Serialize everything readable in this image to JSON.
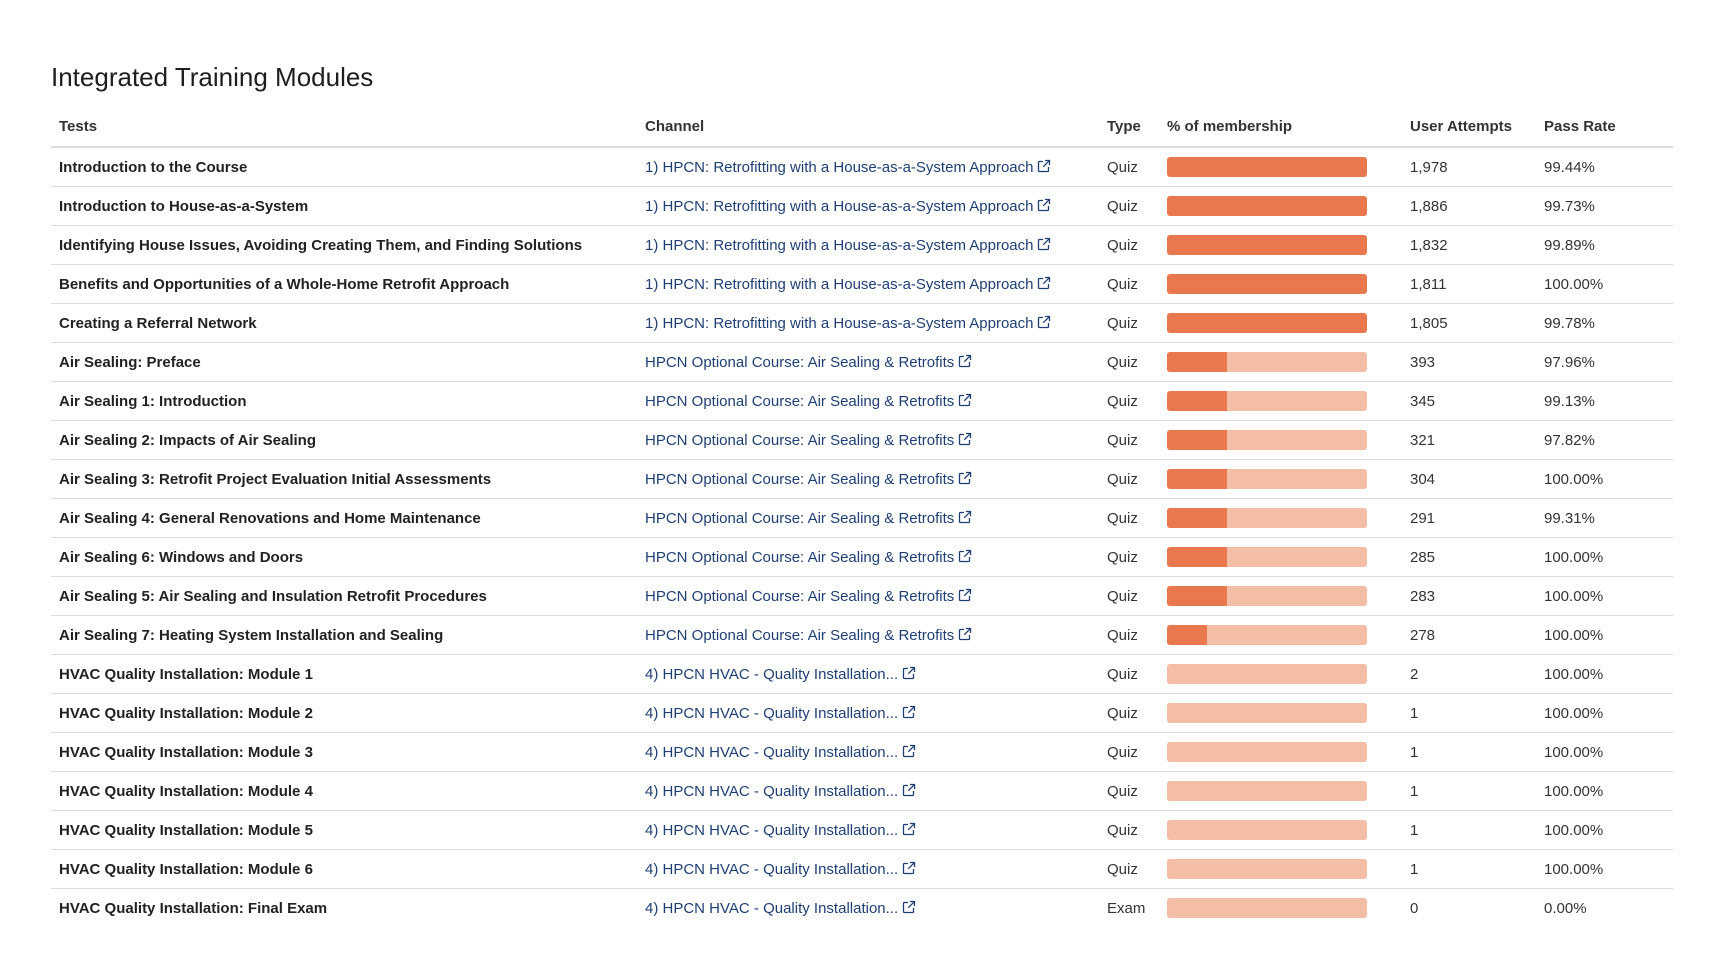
{
  "title": "Integrated Training Modules",
  "colors": {
    "accent": "#e9784f",
    "track": "#f4bda5",
    "link": "#1f3f73"
  },
  "columns": {
    "tests": "Tests",
    "channel": "Channel",
    "type": "Type",
    "membership": "% of membership",
    "attempts": "User Attempts",
    "pass_rate": "Pass Rate"
  },
  "rows": [
    {
      "test": "Introduction to the Course",
      "channel": "1) HPCN: Retrofitting with a House-as-a-System Approach",
      "type": "Quiz",
      "membership_fraction": 1.0,
      "attempts": "1,978",
      "pass_rate": "99.44%"
    },
    {
      "test": "Introduction to House-as-a-System",
      "channel": "1) HPCN: Retrofitting with a House-as-a-System Approach",
      "type": "Quiz",
      "membership_fraction": 1.0,
      "attempts": "1,886",
      "pass_rate": "99.73%"
    },
    {
      "test": "Identifying House Issues, Avoiding Creating Them, and Finding Solutions",
      "channel": "1) HPCN: Retrofitting with a House-as-a-System Approach",
      "type": "Quiz",
      "membership_fraction": 1.0,
      "attempts": "1,832",
      "pass_rate": "99.89%"
    },
    {
      "test": "Benefits and Opportunities of a Whole-Home Retrofit Approach",
      "channel": "1) HPCN: Retrofitting with a House-as-a-System Approach",
      "type": "Quiz",
      "membership_fraction": 1.0,
      "attempts": "1,811",
      "pass_rate": "100.00%"
    },
    {
      "test": "Creating a Referral Network",
      "channel": "1) HPCN: Retrofitting with a House-as-a-System Approach",
      "type": "Quiz",
      "membership_fraction": 1.0,
      "attempts": "1,805",
      "pass_rate": "99.78%"
    },
    {
      "test": "Air Sealing: Preface",
      "channel": "HPCN Optional Course: Air Sealing & Retrofits",
      "type": "Quiz",
      "membership_fraction": 0.3,
      "attempts": "393",
      "pass_rate": "97.96%"
    },
    {
      "test": "Air Sealing 1: Introduction",
      "channel": "HPCN Optional Course: Air Sealing & Retrofits",
      "type": "Quiz",
      "membership_fraction": 0.3,
      "attempts": "345",
      "pass_rate": "99.13%"
    },
    {
      "test": "Air Sealing 2: Impacts of Air Sealing",
      "channel": "HPCN Optional Course: Air Sealing & Retrofits",
      "type": "Quiz",
      "membership_fraction": 0.3,
      "attempts": "321",
      "pass_rate": "97.82%"
    },
    {
      "test": "Air Sealing 3: Retrofit Project Evaluation Initial Assessments",
      "channel": "HPCN Optional Course: Air Sealing & Retrofits",
      "type": "Quiz",
      "membership_fraction": 0.3,
      "attempts": "304",
      "pass_rate": "100.00%"
    },
    {
      "test": "Air Sealing 4: General Renovations and Home Maintenance",
      "channel": "HPCN Optional Course: Air Sealing & Retrofits",
      "type": "Quiz",
      "membership_fraction": 0.3,
      "attempts": "291",
      "pass_rate": "99.31%"
    },
    {
      "test": "Air Sealing 6: Windows and Doors",
      "channel": "HPCN Optional Course: Air Sealing & Retrofits",
      "type": "Quiz",
      "membership_fraction": 0.3,
      "attempts": "285",
      "pass_rate": "100.00%"
    },
    {
      "test": "Air Sealing 5: Air Sealing and Insulation Retrofit Procedures",
      "channel": "HPCN Optional Course: Air Sealing & Retrofits",
      "type": "Quiz",
      "membership_fraction": 0.3,
      "attempts": "283",
      "pass_rate": "100.00%"
    },
    {
      "test": "Air Sealing 7: Heating System Installation and Sealing",
      "channel": "HPCN Optional Course: Air Sealing & Retrofits",
      "type": "Quiz",
      "membership_fraction": 0.2,
      "attempts": "278",
      "pass_rate": "100.00%"
    },
    {
      "test": "HVAC Quality Installation: Module 1",
      "channel": "4) HPCN HVAC - Quality Installation...",
      "type": "Quiz",
      "membership_fraction": 0.0,
      "attempts": "2",
      "pass_rate": "100.00%"
    },
    {
      "test": "HVAC Quality Installation: Module 2",
      "channel": "4) HPCN HVAC - Quality Installation...",
      "type": "Quiz",
      "membership_fraction": 0.0,
      "attempts": "1",
      "pass_rate": "100.00%"
    },
    {
      "test": "HVAC Quality Installation: Module 3",
      "channel": "4) HPCN HVAC - Quality Installation...",
      "type": "Quiz",
      "membership_fraction": 0.0,
      "attempts": "1",
      "pass_rate": "100.00%"
    },
    {
      "test": "HVAC Quality Installation: Module 4",
      "channel": "4) HPCN HVAC - Quality Installation...",
      "type": "Quiz",
      "membership_fraction": 0.0,
      "attempts": "1",
      "pass_rate": "100.00%"
    },
    {
      "test": "HVAC Quality Installation: Module 5",
      "channel": "4) HPCN HVAC - Quality Installation...",
      "type": "Quiz",
      "membership_fraction": 0.0,
      "attempts": "1",
      "pass_rate": "100.00%"
    },
    {
      "test": "HVAC Quality Installation: Module 6",
      "channel": "4) HPCN HVAC - Quality Installation...",
      "type": "Quiz",
      "membership_fraction": 0.0,
      "attempts": "1",
      "pass_rate": "100.00%"
    },
    {
      "test": "HVAC Quality Installation: Final Exam",
      "channel": "4) HPCN HVAC - Quality Installation...",
      "type": "Exam",
      "membership_fraction": 0.0,
      "attempts": "0",
      "pass_rate": "0.00%"
    }
  ]
}
